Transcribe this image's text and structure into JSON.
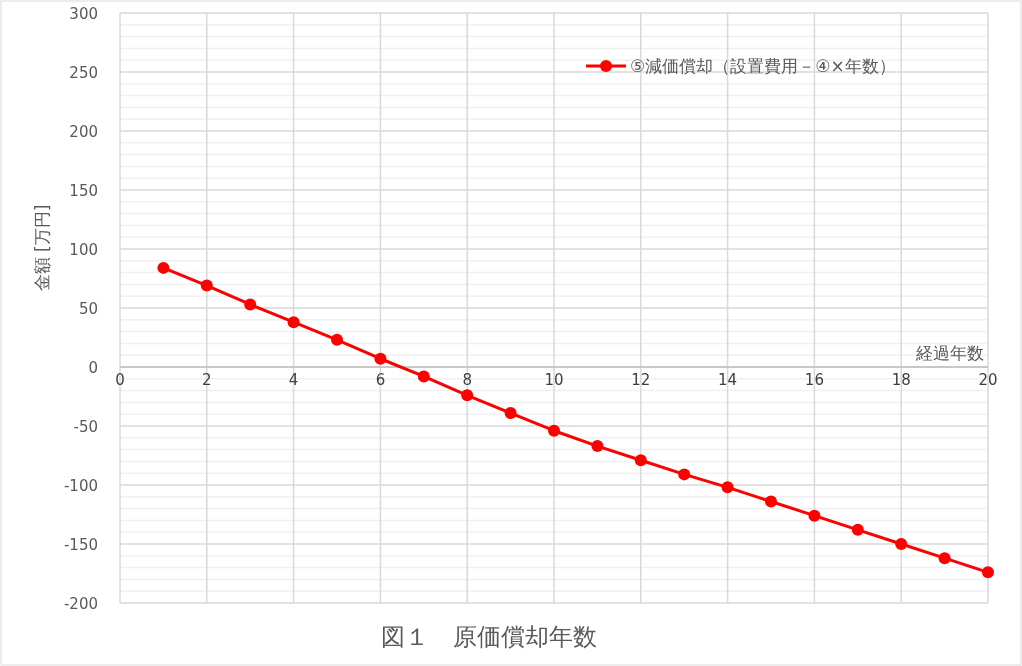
{
  "chart_data": {
    "type": "line",
    "title": "図１　原価償却年数",
    "xlabel": "経過年数",
    "ylabel": "金額 [万円]",
    "x": [
      1,
      2,
      3,
      4,
      5,
      6,
      7,
      8,
      9,
      10,
      11,
      12,
      13,
      14,
      15,
      16,
      17,
      18,
      19,
      20
    ],
    "series": [
      {
        "name": "⑤減価償却（設置費用－④×年数）",
        "color": "#ff0000",
        "values": [
          84,
          69,
          53,
          38,
          23,
          7,
          -8,
          -24,
          -39,
          -54,
          -67,
          -79,
          -91,
          -102,
          -114,
          -126,
          -138,
          -150,
          -162,
          -174
        ]
      }
    ],
    "xlim": [
      0,
      20
    ],
    "xticks": [
      0,
      2,
      4,
      6,
      8,
      10,
      12,
      14,
      16,
      18,
      20
    ],
    "ylim": [
      -200,
      300
    ],
    "yticks": [
      -200,
      -150,
      -100,
      -50,
      0,
      50,
      100,
      150,
      200,
      250,
      300
    ],
    "grid": true,
    "legend": "top right",
    "marker": "circle",
    "line_style": "solid"
  }
}
